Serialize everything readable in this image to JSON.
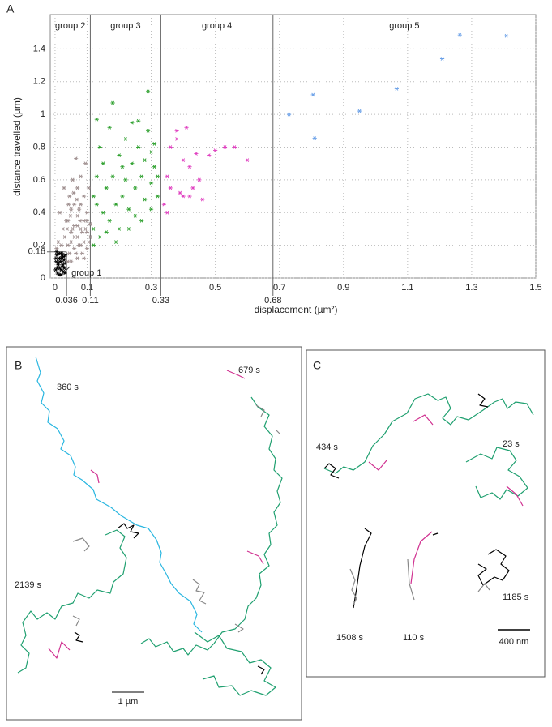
{
  "chart_data": {
    "type": "scatter",
    "panel_label": "A",
    "x_label": "displacement (µm²)",
    "y_label": "distance travelled (µm)",
    "xlim": [
      -0.015,
      1.5
    ],
    "ylim": [
      0,
      1.61
    ],
    "xticks": [
      0,
      0.1,
      0.3,
      0.5,
      0.7,
      0.9,
      1.1,
      1.3,
      1.5
    ],
    "yticks": [
      0,
      0.2,
      0.4,
      0.6,
      0.8,
      1,
      1.2,
      1.4
    ],
    "group_bounds": [
      0.036,
      0.11,
      0.33,
      0.68
    ],
    "group1_ymax": 0.16,
    "grid": true,
    "series": [
      {
        "name": "group 1",
        "color": "#000000",
        "x": [
          0.002,
          0.004,
          0.006,
          0.008,
          0.01,
          0.012,
          0.014,
          0.016,
          0.018,
          0.02,
          0.022,
          0.024,
          0.026,
          0.028,
          0.03,
          0.032,
          0.003,
          0.007,
          0.011,
          0.015,
          0.019,
          0.023,
          0.027,
          0.031,
          0.005,
          0.013,
          0.021,
          0.029,
          0.009,
          0.017
        ],
        "values": [
          0.05,
          0.1,
          0.14,
          0.03,
          0.08,
          0.12,
          0.06,
          0.15,
          0.02,
          0.1,
          0.13,
          0.07,
          0.04,
          0.11,
          0.09,
          0.14,
          0.12,
          0.06,
          0.15,
          0.1,
          0.05,
          0.08,
          0.13,
          0.03,
          0.16,
          0.02,
          0.15,
          0.06,
          0.09,
          0.12
        ]
      },
      {
        "name": "group 2",
        "color": "#9e8e8e",
        "x": [
          0.04,
          0.04,
          0.045,
          0.05,
          0.05,
          0.05,
          0.055,
          0.06,
          0.06,
          0.06,
          0.065,
          0.07,
          0.07,
          0.07,
          0.07,
          0.075,
          0.08,
          0.08,
          0.08,
          0.085,
          0.09,
          0.09,
          0.09,
          0.095,
          0.1,
          0.1,
          0.1,
          0.105,
          0.11,
          0.11,
          0.04,
          0.045,
          0.05,
          0.055,
          0.06,
          0.065,
          0.07,
          0.075,
          0.08,
          0.085,
          0.09,
          0.095,
          0.1,
          0.105,
          0.038,
          0.042,
          0.048,
          0.058,
          0.068,
          0.078,
          0.02,
          0.025,
          0.03,
          0.01,
          0.015,
          0.005,
          0.035,
          0.028
        ],
        "values": [
          0.2,
          0.35,
          0.5,
          0.1,
          0.28,
          0.42,
          0.6,
          0.18,
          0.32,
          0.45,
          0.73,
          0.12,
          0.25,
          0.38,
          0.55,
          0.2,
          0.3,
          0.45,
          0.62,
          0.15,
          0.22,
          0.35,
          0.5,
          0.7,
          0.18,
          0.28,
          0.4,
          0.55,
          0.25,
          0.33,
          0.1,
          0.15,
          0.22,
          0.3,
          0.25,
          0.15,
          0.32,
          0.42,
          0.2,
          0.28,
          0.12,
          0.3,
          0.35,
          0.22,
          0.3,
          0.45,
          0.38,
          0.52,
          0.48,
          0.35,
          0.2,
          0.3,
          0.25,
          0.22,
          0.4,
          0.18,
          0.35,
          0.55
        ]
      },
      {
        "name": "group 3",
        "color": "#2ea02e",
        "x": [
          0.12,
          0.12,
          0.13,
          0.13,
          0.14,
          0.15,
          0.15,
          0.16,
          0.17,
          0.17,
          0.18,
          0.18,
          0.19,
          0.2,
          0.2,
          0.21,
          0.22,
          0.22,
          0.23,
          0.24,
          0.24,
          0.25,
          0.25,
          0.26,
          0.26,
          0.27,
          0.28,
          0.28,
          0.29,
          0.29,
          0.3,
          0.3,
          0.31,
          0.31,
          0.32,
          0.32,
          0.14,
          0.16,
          0.19,
          0.23,
          0.27,
          0.12,
          0.13,
          0.21,
          0.3
        ],
        "values": [
          0.3,
          0.5,
          0.62,
          0.97,
          0.8,
          0.4,
          0.7,
          0.55,
          0.92,
          0.35,
          1.07,
          0.62,
          0.45,
          0.75,
          0.3,
          0.5,
          0.85,
          0.6,
          0.42,
          0.7,
          0.95,
          0.55,
          0.38,
          0.8,
          0.96,
          0.62,
          0.48,
          0.72,
          0.9,
          1.14,
          0.58,
          0.42,
          0.68,
          0.82,
          0.5,
          0.62,
          0.25,
          0.28,
          0.22,
          0.3,
          0.35,
          0.2,
          0.45,
          0.68,
          0.77
        ]
      },
      {
        "name": "group 4",
        "color": "#e040c0",
        "x": [
          0.34,
          0.35,
          0.36,
          0.38,
          0.4,
          0.4,
          0.42,
          0.43,
          0.45,
          0.46,
          0.48,
          0.5,
          0.53,
          0.56,
          0.6,
          0.38,
          0.36,
          0.41,
          0.44,
          0.35,
          0.39,
          0.42
        ],
        "values": [
          0.45,
          0.62,
          0.8,
          0.9,
          0.72,
          0.5,
          0.68,
          0.55,
          0.6,
          0.48,
          0.75,
          0.78,
          0.8,
          0.8,
          0.72,
          0.85,
          0.55,
          0.92,
          0.76,
          0.4,
          0.52,
          0.5
        ]
      },
      {
        "name": "group 5",
        "color": "#6aa0e8",
        "x": [
          0.73,
          0.805,
          0.81,
          0.95,
          1.066,
          1.208,
          1.263,
          1.408
        ],
        "values": [
          1.0,
          1.12,
          0.854,
          1.02,
          1.157,
          1.34,
          1.485,
          1.48
        ]
      }
    ]
  },
  "panel_b": {
    "label": "B",
    "trajectories": [
      "360 s",
      "679 s",
      "2139 s"
    ],
    "scale_bar": "1 µm"
  },
  "panel_c": {
    "label": "C",
    "trajectories": [
      "434 s",
      "23 s",
      "1508 s",
      "110 s",
      "1185 s"
    ],
    "scale_bar": "400 nm"
  }
}
